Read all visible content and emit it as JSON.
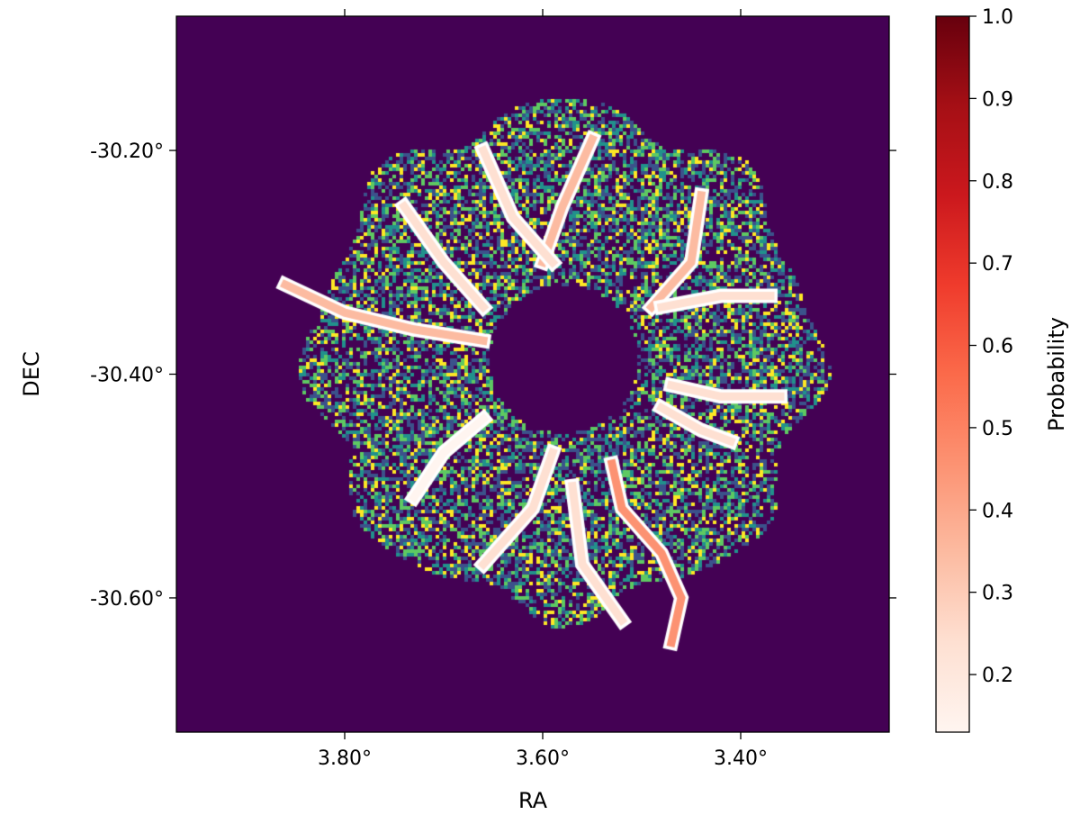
{
  "chart_data": {
    "type": "heatmap",
    "title": "",
    "xlabel": "RA",
    "ylabel": "DEC",
    "xlim": [
      3.97,
      3.25
    ],
    "ylim": [
      -30.72,
      -30.08
    ],
    "x_inverted": true,
    "x_ticks": [
      {
        "value": 3.8,
        "label": "3.80°"
      },
      {
        "value": 3.6,
        "label": "3.60°"
      },
      {
        "value": 3.4,
        "label": "3.40°"
      }
    ],
    "y_ticks": [
      {
        "value": -30.2,
        "label": "-30.20°"
      },
      {
        "value": -30.4,
        "label": "-30.40°"
      },
      {
        "value": -30.6,
        "label": "-30.60°"
      }
    ],
    "background_color": "#440154",
    "field": {
      "center_ra": 3.58,
      "center_dec": -30.385,
      "outer_radius_deg": 0.27,
      "inner_mask_radius_deg": 0.075,
      "noise_colormap": "viridis"
    },
    "probability_overlay": {
      "colormap": "Reds",
      "filaments": [
        {
          "points": [
            [
              3.86,
              -30.32
            ],
            [
              3.8,
              -30.345
            ],
            [
              3.73,
              -30.36
            ],
            [
              3.66,
              -30.37
            ]
          ],
          "value": 0.32
        },
        {
          "points": [
            [
              3.74,
              -30.25
            ],
            [
              3.7,
              -30.3
            ],
            [
              3.66,
              -30.34
            ]
          ],
          "value": 0.22
        },
        {
          "points": [
            [
              3.55,
              -30.19
            ],
            [
              3.58,
              -30.25
            ],
            [
              3.6,
              -30.3
            ]
          ],
          "value": 0.33
        },
        {
          "points": [
            [
              3.66,
              -30.2
            ],
            [
              3.63,
              -30.26
            ],
            [
              3.59,
              -30.3
            ]
          ],
          "value": 0.22
        },
        {
          "points": [
            [
              3.44,
              -30.24
            ],
            [
              3.45,
              -30.3
            ],
            [
              3.49,
              -30.34
            ]
          ],
          "value": 0.3
        },
        {
          "points": [
            [
              3.37,
              -30.33
            ],
            [
              3.42,
              -30.33
            ],
            [
              3.48,
              -30.34
            ]
          ],
          "value": 0.26
        },
        {
          "points": [
            [
              3.36,
              -30.42
            ],
            [
              3.42,
              -30.42
            ],
            [
              3.47,
              -30.41
            ]
          ],
          "value": 0.22
        },
        {
          "points": [
            [
              3.41,
              -30.46
            ],
            [
              3.44,
              -30.45
            ],
            [
              3.48,
              -30.43
            ]
          ],
          "value": 0.2
        },
        {
          "points": [
            [
              3.53,
              -30.48
            ],
            [
              3.52,
              -30.52
            ],
            [
              3.48,
              -30.56
            ],
            [
              3.46,
              -30.6
            ],
            [
              3.47,
              -30.64
            ]
          ],
          "value": 0.42
        },
        {
          "points": [
            [
              3.59,
              -30.47
            ],
            [
              3.61,
              -30.52
            ],
            [
              3.66,
              -30.57
            ]
          ],
          "value": 0.2
        },
        {
          "points": [
            [
              3.57,
              -30.5
            ],
            [
              3.56,
              -30.57
            ],
            [
              3.52,
              -30.62
            ]
          ],
          "value": 0.22
        },
        {
          "points": [
            [
              3.66,
              -30.44
            ],
            [
              3.7,
              -30.47
            ],
            [
              3.73,
              -30.51
            ]
          ],
          "value": 0.18
        }
      ]
    },
    "colorbar": {
      "label": "Probability",
      "min": 0.13,
      "max": 1.0,
      "ticks": [
        0.2,
        0.3,
        0.4,
        0.5,
        0.6,
        0.7,
        0.8,
        0.9,
        1.0
      ],
      "tick_labels": [
        "0.2",
        "0.3",
        "0.4",
        "0.5",
        "0.6",
        "0.7",
        "0.8",
        "0.9",
        "1.0"
      ],
      "stops": [
        "#fff5f0",
        "#fee0d2",
        "#fcbba1",
        "#fc9272",
        "#fb6a4a",
        "#ef3b2c",
        "#cb181d",
        "#a50f15",
        "#67000d"
      ]
    }
  }
}
